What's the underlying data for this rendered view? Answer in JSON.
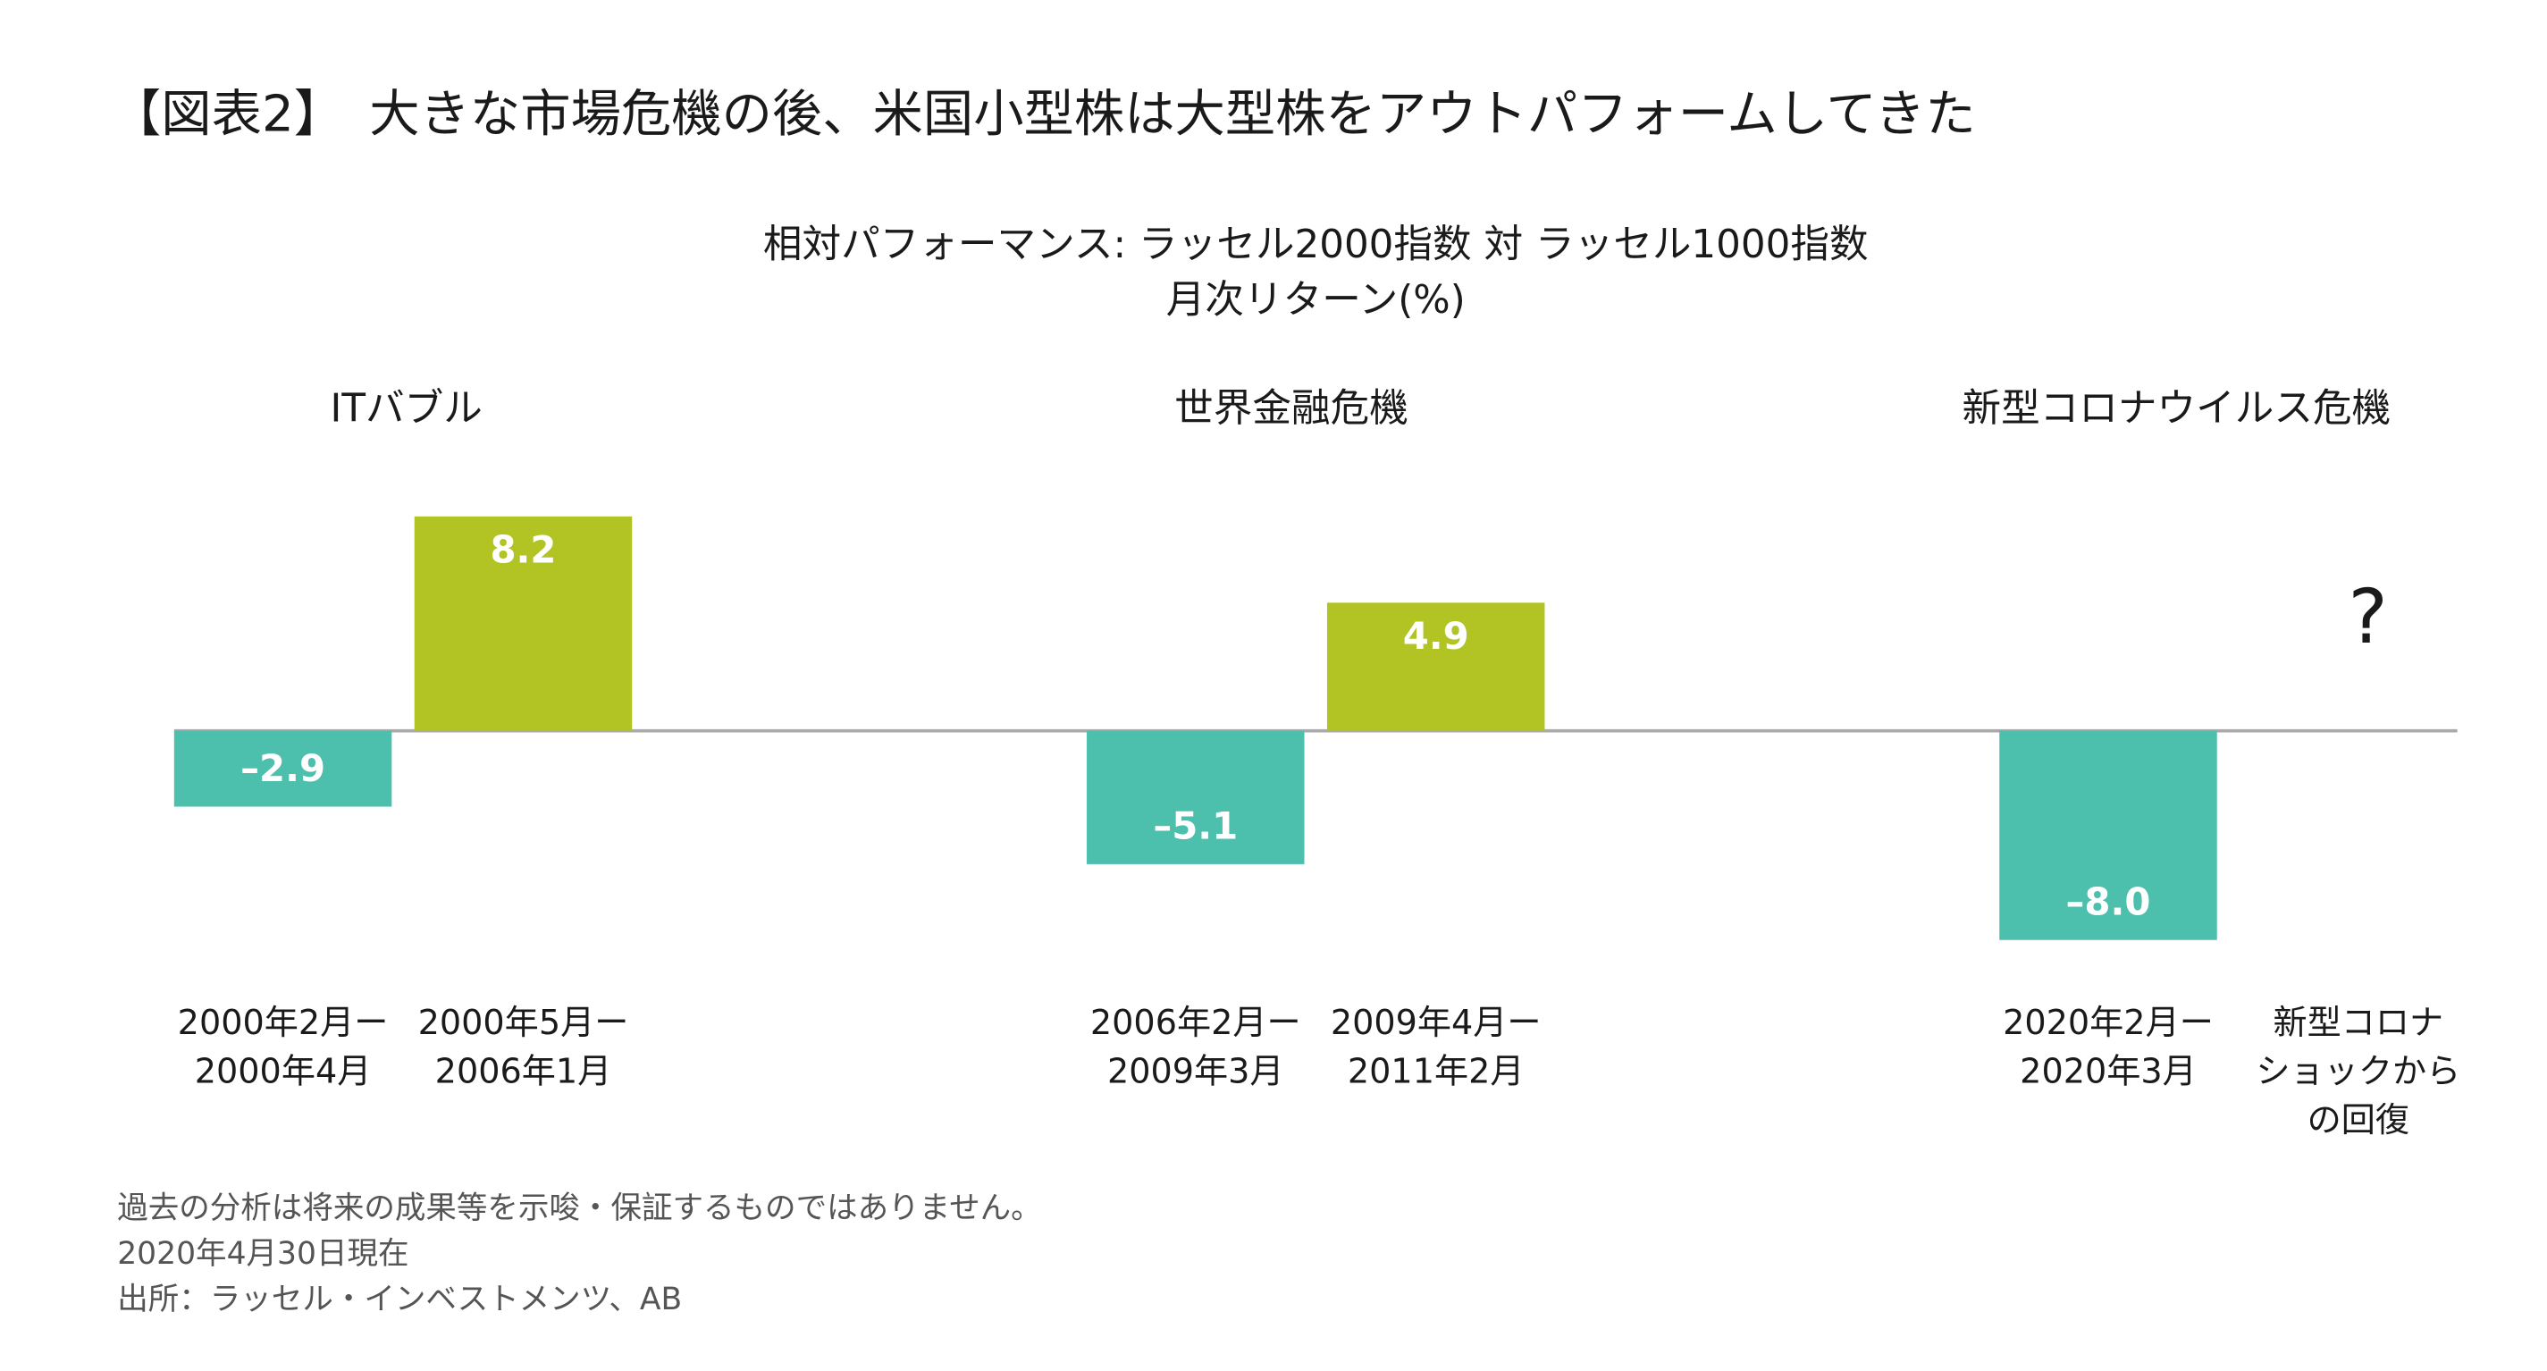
{
  "chart_data": {
    "type": "bar",
    "title": "【図表2】　大きな市場危機の後、米国小型株は大型株をアウトパフォームしてきた",
    "subtitle": [
      "相対パフォーマンス: ラッセル2000指数 対 ラッセル1000指数",
      "月次リターン(%)"
    ],
    "groups": [
      "ITバブル",
      "世界金融危機",
      "新型コロナウイルス危機"
    ],
    "categories": [
      [
        "2000年2月ー",
        "2000年4月"
      ],
      [
        "2000年5月ー",
        "2006年1月"
      ],
      [
        "2006年2月ー",
        "2009年3月"
      ],
      [
        "2009年4月ー",
        "2011年2月"
      ],
      [
        "2020年2月ー",
        "2020年3月"
      ],
      [
        "新型コロナ",
        "ショックから",
        "の回復"
      ]
    ],
    "values": [
      -2.9,
      8.2,
      -5.1,
      4.9,
      -8.0,
      null
    ],
    "value_labels": [
      "–2.9",
      "8.2",
      "–5.1",
      "4.9",
      "–8.0",
      null
    ],
    "annotation": "?",
    "negative_color": "#4dbfad",
    "positive_color": "#b1c424",
    "notes": [
      "過去の分析は将来の成果等を示唆・保証するものではありません。",
      "2020年4月30日現在",
      "出所：ラッセル・インベストメンツ、AB"
    ]
  }
}
